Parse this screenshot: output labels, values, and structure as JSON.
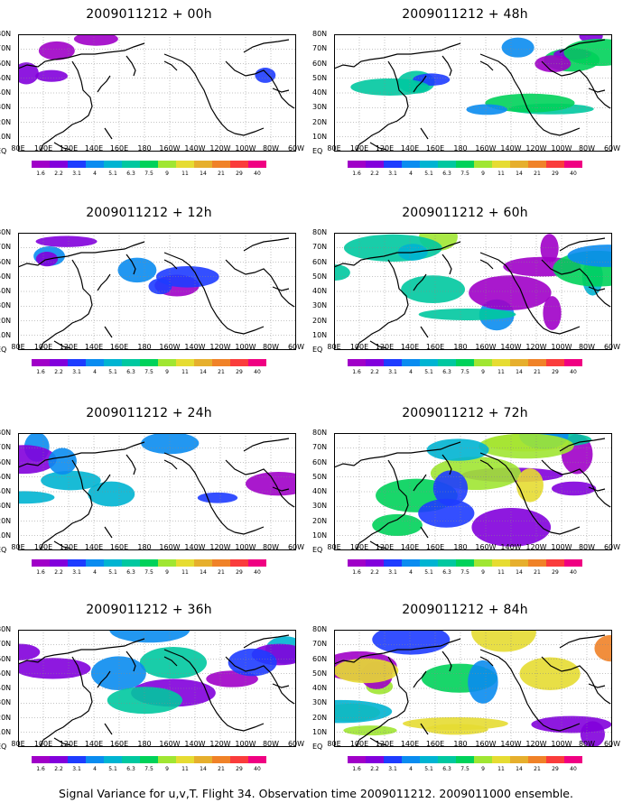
{
  "panels": [
    {
      "title": "2009011212 + 00h",
      "intensity": 0.05
    },
    {
      "title": "2009011212 + 12h",
      "intensity": 0.2
    },
    {
      "title": "2009011212 + 24h",
      "intensity": 0.35
    },
    {
      "title": "2009011212 + 36h",
      "intensity": 0.5
    },
    {
      "title": "2009011212 + 48h",
      "intensity": 0.55
    },
    {
      "title": "2009011212 + 60h",
      "intensity": 0.7
    },
    {
      "title": "2009011212 + 72h",
      "intensity": 0.8
    },
    {
      "title": "2009011212 + 84h",
      "intensity": 0.95
    }
  ],
  "lat_labels": [
    "EQ",
    "10N",
    "20N",
    "30N",
    "40N",
    "50N",
    "60N",
    "70N",
    "80N"
  ],
  "lon_labels": [
    "80E",
    "100E",
    "120E",
    "140E",
    "160E",
    "180",
    "160W",
    "140W",
    "120W",
    "100W",
    "80W",
    "60W"
  ],
  "colorbar": {
    "levels": [
      "1.6",
      "2.2",
      "3.1",
      "4",
      "5.1",
      "6.3",
      "7.5",
      "9",
      "11",
      "14",
      "21",
      "29",
      "40"
    ],
    "colors": [
      "#a000c8",
      "#8200dc",
      "#1e3cff",
      "#0a8cf0",
      "#00b4d2",
      "#00c8a0",
      "#00d25a",
      "#a0e632",
      "#e6dc32",
      "#e6af2d",
      "#f08228",
      "#fa3c3c",
      "#f00082"
    ]
  },
  "footer": "Signal Variance for u,v,T. Flight 34. Observation time 2009011212. 2009011000 ensemble."
}
